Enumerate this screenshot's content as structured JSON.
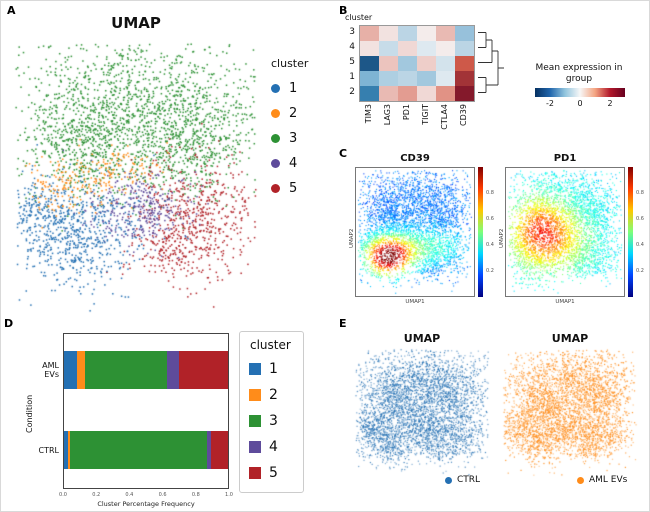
{
  "panels": {
    "a": "A",
    "b": "B",
    "c": "C",
    "d": "D",
    "e": "E"
  },
  "chart_data": [
    {
      "type": "scatter",
      "panel": "A",
      "title": "UMAP",
      "legend_title": "cluster",
      "clusters": [
        {
          "label": "1",
          "color": "#2470b3"
        },
        {
          "label": "2",
          "color": "#ff8c1a"
        },
        {
          "label": "3",
          "color": "#2d9134"
        },
        {
          "label": "4",
          "color": "#5e4b9b"
        },
        {
          "label": "5",
          "color": "#b12228"
        }
      ]
    },
    {
      "type": "heatmap",
      "panel": "B",
      "axis_title": "cluster",
      "rows": [
        "3",
        "4",
        "5",
        "1",
        "2"
      ],
      "cols": [
        "TIM3",
        "LAG3",
        "PD1",
        "TIGIT",
        "CTLA4",
        "CD39"
      ],
      "values": [
        [
          0.7,
          0.2,
          -0.5,
          0.1,
          0.6,
          -0.8
        ],
        [
          0.2,
          -0.4,
          0.3,
          -0.2,
          0.1,
          -0.5
        ],
        [
          -2.4,
          0.5,
          -0.7,
          0.4,
          -0.3,
          1.6
        ],
        [
          -1.0,
          -0.6,
          -0.5,
          -0.7,
          -0.2,
          2.2
        ],
        [
          -1.8,
          0.6,
          0.9,
          0.3,
          1.0,
          2.6
        ]
      ],
      "vmin": -3,
      "vmax": 3,
      "colorbar": {
        "title": "Mean expression in group",
        "ticks": [
          "-2",
          "0",
          "2"
        ]
      }
    },
    {
      "type": "scatter",
      "panel": "C",
      "title": "CD39",
      "xlabel": "UMAP1",
      "ylabel": "UMAP2",
      "colormap": "jet",
      "colorbar_ticks": [
        "0.8",
        "0.6",
        "0.4",
        "0.2"
      ],
      "base": 0.18,
      "hotspots": [
        {
          "x": 0.27,
          "y": 0.7,
          "sx": 0.13,
          "sy": 0.1,
          "amp": 0.72
        },
        {
          "x": 0.52,
          "y": 0.62,
          "sx": 0.28,
          "sy": 0.1,
          "amp": 0.22
        }
      ]
    },
    {
      "type": "scatter",
      "panel": "C",
      "title": "PD1",
      "xlabel": "UMAP1",
      "ylabel": "UMAP2",
      "colormap": "jet",
      "colorbar_ticks": [
        "0.8",
        "0.6",
        "0.4",
        "0.2"
      ],
      "base": 0.3,
      "hotspots": [
        {
          "x": 0.35,
          "y": 0.55,
          "sx": 0.22,
          "sy": 0.18,
          "amp": 0.4
        },
        {
          "x": 0.25,
          "y": 0.4,
          "sx": 0.15,
          "sy": 0.15,
          "amp": 0.15
        }
      ]
    },
    {
      "type": "bar",
      "panel": "D",
      "orientation": "horizontal",
      "ylabel": "Condition",
      "xlabel": "Cluster Percentage Frequency",
      "legend_title": "cluster",
      "categories": [
        "AML EVs",
        "CTRL"
      ],
      "xticks": [
        "0.0",
        "0.2",
        "0.4",
        "0.6",
        "0.8",
        "1.0"
      ],
      "series": [
        {
          "name": "1",
          "color": "#2470b3",
          "values": [
            0.08,
            0.025
          ]
        },
        {
          "name": "2",
          "color": "#ff8c1a",
          "values": [
            0.05,
            0.01
          ]
        },
        {
          "name": "3",
          "color": "#2d9134",
          "values": [
            0.5,
            0.835
          ]
        },
        {
          "name": "4",
          "color": "#5e4b9b",
          "values": [
            0.07,
            0.025
          ]
        },
        {
          "name": "5",
          "color": "#b12228",
          "values": [
            0.3,
            0.105
          ]
        }
      ]
    },
    {
      "type": "scatter",
      "panel": "E",
      "title": "UMAP",
      "legend_label": "CTRL",
      "color": "#2470b3"
    },
    {
      "type": "scatter",
      "panel": "E",
      "title": "UMAP",
      "legend_label": "AML EVs",
      "color": "#ff8c1a"
    }
  ]
}
